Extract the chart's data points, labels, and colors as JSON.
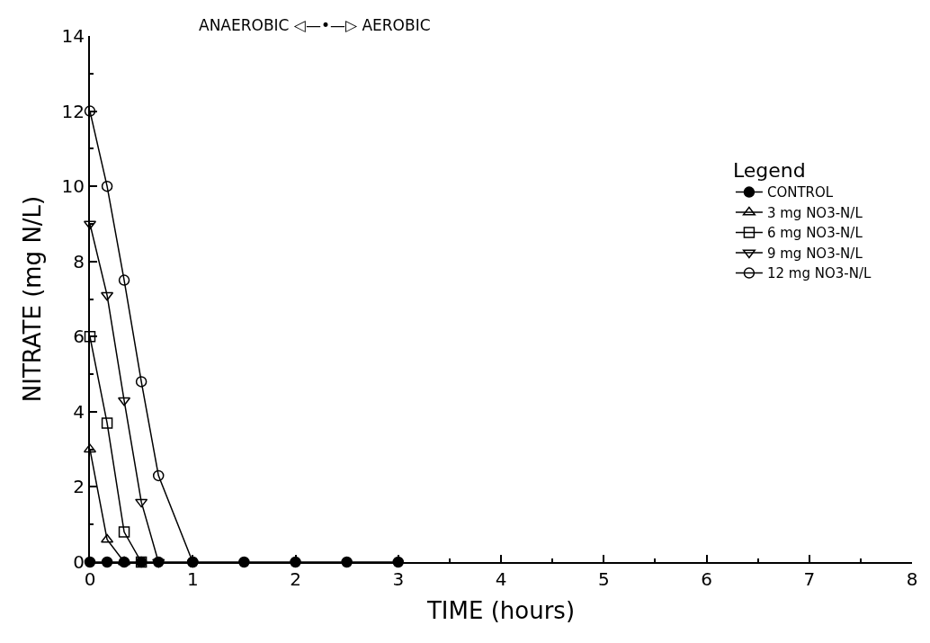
{
  "chart_data": {
    "type": "line",
    "xlabel": "TIME (hours)",
    "ylabel": "NITRATE (mg N/L)",
    "legend_title": "Legend",
    "legend": "right",
    "xlim": [
      0,
      8
    ],
    "xticks": [
      0,
      1,
      2,
      3,
      4,
      5,
      6,
      7,
      8
    ],
    "ylim": [
      0,
      14
    ],
    "yticks": [
      0,
      2,
      4,
      6,
      8,
      10,
      12,
      14
    ],
    "annotations": [
      "ANAEROBIC ◁—•—▷ AEROBIC"
    ],
    "series": [
      {
        "name": "CONTROL",
        "color": "#000000",
        "marker": "circle",
        "x": [
          0,
          0.167,
          0.333,
          0.5,
          0.667,
          1,
          1.5,
          2,
          2.5,
          3
        ],
        "values": [
          0,
          0,
          0,
          0,
          0,
          0,
          0,
          0,
          0,
          0
        ]
      },
      {
        "name": "3 mg NO3-N/L",
        "color": "#000000",
        "marker": "triangle",
        "x": [
          0,
          0.167,
          0.333
        ],
        "values": [
          3,
          0.6,
          0
        ]
      },
      {
        "name": "6 mg NO3-N/L",
        "color": "#000000",
        "marker": "square",
        "x": [
          0,
          0.167,
          0.333,
          0.5
        ],
        "values": [
          6,
          3.7,
          0.8,
          0
        ]
      },
      {
        "name": "9 mg NO3-N/L",
        "color": "#000000",
        "marker": "triangle-down",
        "x": [
          0,
          0.167,
          0.333,
          0.5,
          0.667
        ],
        "values": [
          9,
          7.1,
          4.3,
          1.6,
          0
        ]
      },
      {
        "name": "12 mg NO3-N/L",
        "color": "#000000",
        "marker": "circle",
        "x": [
          0,
          0.167,
          0.333,
          0.5,
          0.667,
          1
        ],
        "values": [
          12,
          10,
          7.5,
          4.8,
          2.3,
          0
        ]
      }
    ]
  }
}
